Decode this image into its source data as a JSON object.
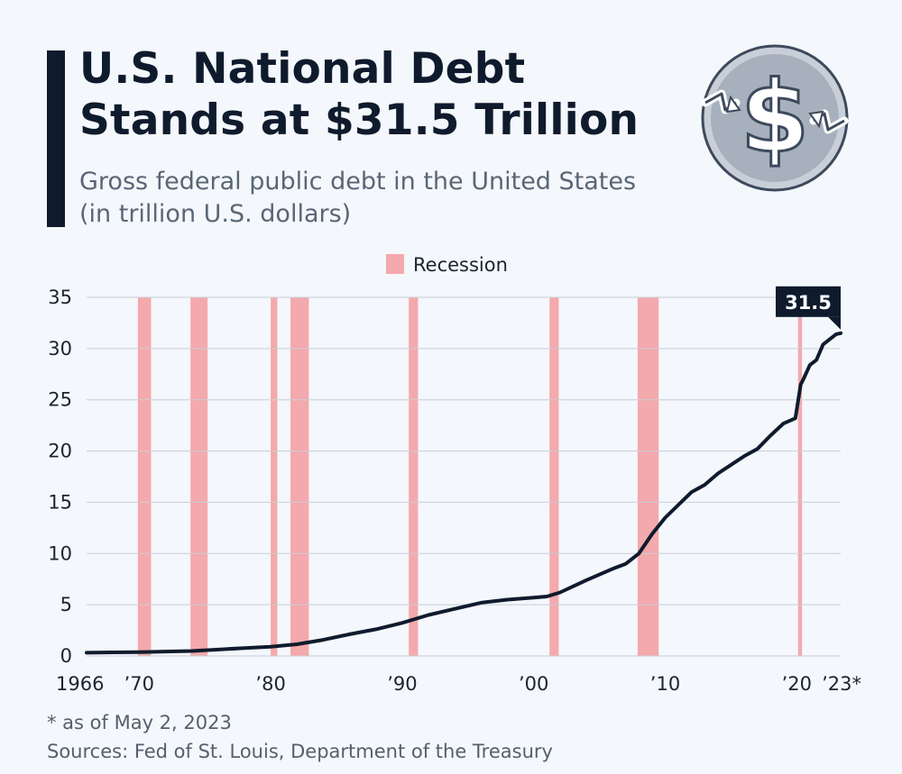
{
  "header": {
    "title_line1": "U.S. National Debt",
    "title_line2": "Stands at $31.5 Trillion",
    "subtitle_line1": "Gross federal public debt in the United States",
    "subtitle_line2": "(in trillion U.S. dollars)"
  },
  "logo": {
    "icon": "dollar-sign-icon"
  },
  "chart_data": {
    "type": "line",
    "title": "U.S. National Debt Stands at $31.5 Trillion",
    "subtitle": "Gross federal public debt in the United States (in trillion U.S. dollars)",
    "xlim": [
      1966,
      2023.34
    ],
    "ylim": [
      0,
      35
    ],
    "yticks": [
      0,
      5,
      10,
      15,
      20,
      25,
      30,
      35
    ],
    "xticks": [
      {
        "value": 1966,
        "label": "1966"
      },
      {
        "value": 1970,
        "label": "'70"
      },
      {
        "value": 1980,
        "label": "'80"
      },
      {
        "value": 1990,
        "label": "'90"
      },
      {
        "value": 2000,
        "label": "'00"
      },
      {
        "value": 2010,
        "label": "'10"
      },
      {
        "value": 2020,
        "label": "'20"
      },
      {
        "value": 2023,
        "label": "'23*"
      }
    ],
    "grid": true,
    "legend": {
      "position": "top-center",
      "entries": [
        "Recession"
      ]
    },
    "recessions": [
      {
        "start": 1969.9,
        "end": 1970.9
      },
      {
        "start": 1973.9,
        "end": 1975.2
      },
      {
        "start": 1980.0,
        "end": 1980.5
      },
      {
        "start": 1981.5,
        "end": 1982.9
      },
      {
        "start": 1990.5,
        "end": 1991.2
      },
      {
        "start": 2001.2,
        "end": 2001.9
      },
      {
        "start": 2007.9,
        "end": 2009.5
      },
      {
        "start": 2020.1,
        "end": 2020.4
      }
    ],
    "series": [
      {
        "x": [
          1966,
          1968,
          1970,
          1972,
          1974,
          1976,
          1978,
          1980,
          1982,
          1984,
          1986,
          1988,
          1990,
          1992,
          1994,
          1996,
          1998,
          2000,
          2001,
          2002,
          2004,
          2006,
          2007,
          2008,
          2009,
          2010,
          2012,
          2013,
          2014,
          2016,
          2017,
          2018,
          2019,
          2019.9,
          2020.3,
          2020.5,
          2021,
          2021.5,
          2022,
          2022.5,
          2023,
          2023.34
        ],
        "values": [
          0.32,
          0.35,
          0.38,
          0.43,
          0.48,
          0.62,
          0.77,
          0.91,
          1.14,
          1.57,
          2.12,
          2.6,
          3.23,
          4.0,
          4.6,
          5.2,
          5.5,
          5.7,
          5.8,
          6.2,
          7.4,
          8.5,
          9.0,
          10.0,
          11.9,
          13.5,
          16.0,
          16.7,
          17.8,
          19.5,
          20.2,
          21.5,
          22.7,
          23.2,
          26.5,
          27.0,
          28.4,
          28.9,
          30.4,
          30.9,
          31.4,
          31.5
        ]
      }
    ],
    "annotations": [
      {
        "x": 2023.34,
        "y": 31.5,
        "text": "31.5"
      }
    ],
    "colors": {
      "line": "#0f1b2d",
      "recession": "#f4a9ac",
      "grid": "#c9ced6",
      "callout": "#0f1b2d"
    }
  },
  "footer": {
    "note": "* as of May 2, 2023",
    "sources": "Sources: Fed of St. Louis, Department of the Treasury"
  }
}
